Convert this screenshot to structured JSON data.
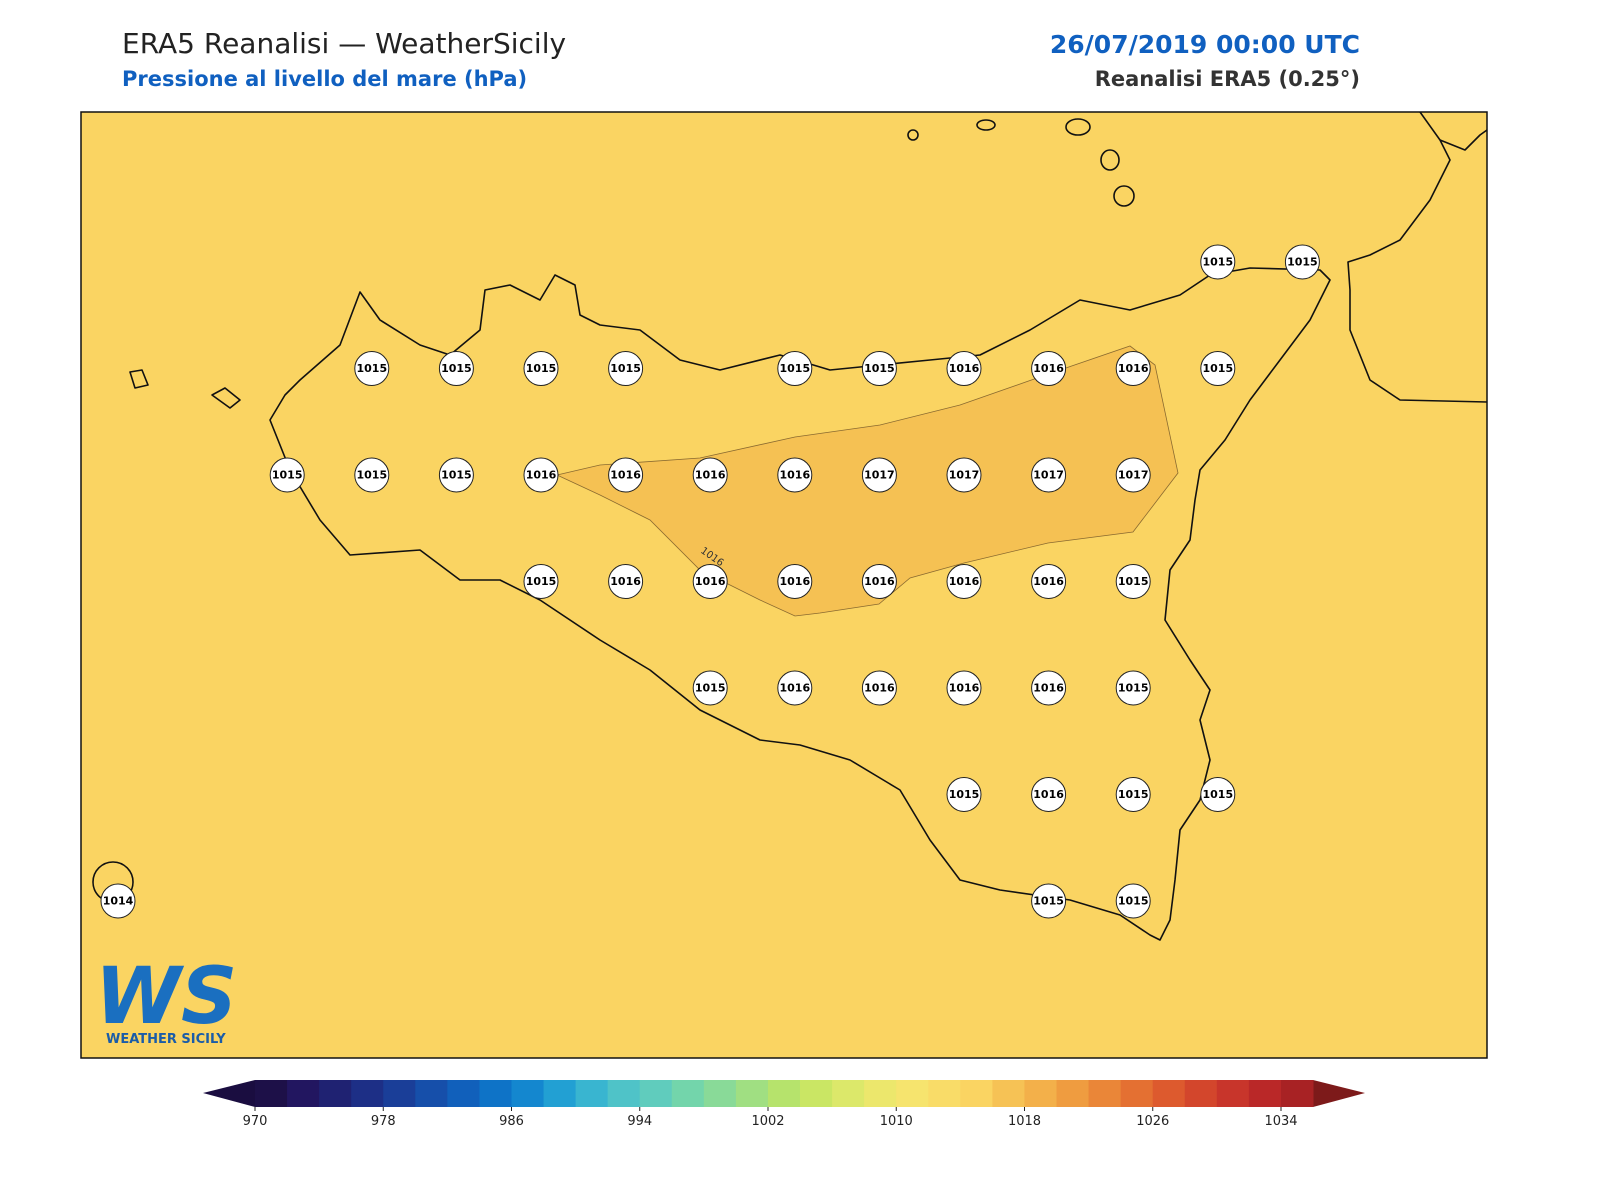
{
  "header": {
    "title": "ERA5 Reanalisi — WeatherSicily",
    "subtitle": "Pressione al livello del mare (hPa)",
    "date": "26/07/2019 00:00 UTC",
    "source": "Reanalisi ERA5 (0.25°)"
  },
  "map": {
    "contour_label": "1016",
    "point_rows": [
      [
        null,
        null,
        null,
        null,
        null,
        null,
        null,
        null,
        null,
        null,
        null,
        null,
        null,
        1015,
        1015
      ],
      [
        null,
        null,
        null,
        1015,
        1015,
        1015,
        1015,
        null,
        1015,
        1015,
        1016,
        1016,
        1016,
        1015,
        null
      ],
      [
        null,
        null,
        1015,
        1015,
        1015,
        1016,
        1016,
        1016,
        1016,
        1017,
        1017,
        1017,
        1017,
        null,
        null
      ],
      [
        null,
        null,
        null,
        null,
        null,
        1015,
        1016,
        1016,
        1016,
        1016,
        1016,
        1016,
        1015,
        null,
        null
      ],
      [
        null,
        null,
        null,
        null,
        null,
        null,
        null,
        1015,
        1016,
        1016,
        1016,
        1016,
        1015,
        null,
        null
      ],
      [
        null,
        null,
        null,
        null,
        null,
        null,
        null,
        null,
        null,
        null,
        1015,
        1016,
        1015,
        1015,
        null
      ],
      [
        1014,
        null,
        null,
        null,
        null,
        null,
        null,
        null,
        null,
        null,
        null,
        1015,
        1015,
        null,
        null
      ]
    ]
  },
  "logo": {
    "mark": "WS",
    "text": "WEATHER SICILY"
  },
  "colorbar": {
    "ticks": [
      970,
      978,
      986,
      994,
      1002,
      1010,
      1018,
      1026,
      1034
    ],
    "colors": [
      "#1d1048",
      "#221660",
      "#1f2272",
      "#1d2f86",
      "#1a3e98",
      "#164faa",
      "#1160bb",
      "#0e73c7",
      "#1487cf",
      "#22a0d3",
      "#39b5d0",
      "#4fc3c8",
      "#60ccbd",
      "#73d5ab",
      "#89da98",
      "#a0df82",
      "#b6e36c",
      "#cae664",
      "#dce86a",
      "#ece76c",
      "#f6e46e",
      "#f9dc68",
      "#fad462",
      "#f6c255",
      "#f3b04a",
      "#ef9c40",
      "#ea8638",
      "#e47032",
      "#dd5a2e",
      "#d3462c",
      "#c8352b",
      "#ba2828",
      "#a82224"
    ]
  }
}
